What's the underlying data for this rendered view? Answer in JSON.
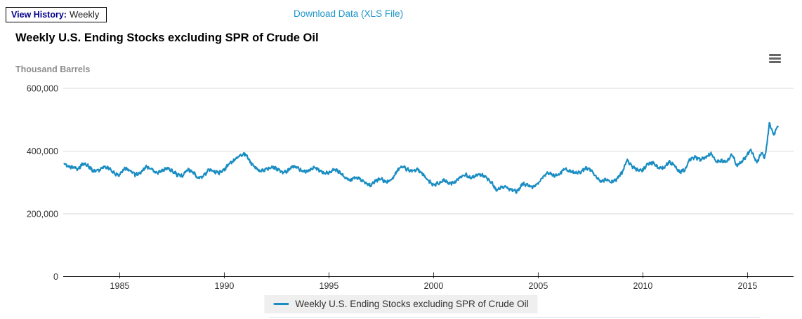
{
  "page": {
    "view_history_label": "View History:",
    "view_history_value": "Weekly",
    "download_link": "Download Data (XLS File)"
  },
  "chart": {
    "title": "Weekly U.S. Ending Stocks excluding SPR of Crude Oil",
    "y_axis_title": "Thousand Barrels",
    "legend_label": "Weekly U.S. Ending Stocks excluding SPR of Crude Oil",
    "colors": {
      "line": "#1a8dc2",
      "grid": "#d9d9d9",
      "axis_line": "#111111",
      "tick_label": "#333333",
      "link": "#2095ca",
      "view_history_label": "#00008b",
      "y_axis_title": "#8c8c8c",
      "legend_bg": "#efefef",
      "legend_text": "#333333"
    }
  },
  "chart_data": {
    "type": "line",
    "title": "Weekly U.S. Ending Stocks excluding SPR of Crude Oil",
    "xlabel": "",
    "ylabel": "Thousand Barrels",
    "xlim": [
      1982.3,
      2017.2
    ],
    "ylim": [
      0,
      600000
    ],
    "x_ticks": [
      1985,
      1990,
      1995,
      2000,
      2005,
      2010,
      2015
    ],
    "y_ticks": [
      0,
      200000,
      400000,
      600000
    ],
    "grid": "horizontal",
    "legend_position": "bottom",
    "series": [
      {
        "name": "Weekly U.S. Ending Stocks excluding SPR of Crude Oil",
        "points": [
          [
            1982.35,
            358000
          ],
          [
            1982.5,
            352000
          ],
          [
            1982.75,
            347000
          ],
          [
            1983.0,
            343000
          ],
          [
            1983.25,
            361000
          ],
          [
            1983.5,
            352000
          ],
          [
            1983.75,
            336000
          ],
          [
            1984.0,
            339000
          ],
          [
            1984.25,
            352000
          ],
          [
            1984.5,
            344000
          ],
          [
            1984.75,
            329000
          ],
          [
            1985.0,
            323000
          ],
          [
            1985.25,
            346000
          ],
          [
            1985.5,
            339000
          ],
          [
            1985.75,
            324000
          ],
          [
            1986.0,
            331000
          ],
          [
            1986.25,
            351000
          ],
          [
            1986.5,
            344000
          ],
          [
            1986.75,
            330000
          ],
          [
            1987.0,
            336000
          ],
          [
            1987.25,
            346000
          ],
          [
            1987.5,
            339000
          ],
          [
            1987.75,
            324000
          ],
          [
            1988.0,
            321000
          ],
          [
            1988.25,
            341000
          ],
          [
            1988.5,
            334000
          ],
          [
            1988.75,
            314000
          ],
          [
            1989.0,
            319000
          ],
          [
            1989.25,
            341000
          ],
          [
            1989.5,
            334000
          ],
          [
            1989.75,
            331000
          ],
          [
            1990.0,
            341000
          ],
          [
            1990.25,
            361000
          ],
          [
            1990.5,
            371000
          ],
          [
            1990.75,
            386000
          ],
          [
            1991.0,
            391000
          ],
          [
            1991.25,
            364000
          ],
          [
            1991.5,
            344000
          ],
          [
            1991.75,
            336000
          ],
          [
            1992.0,
            341000
          ],
          [
            1992.25,
            351000
          ],
          [
            1992.5,
            344000
          ],
          [
            1992.75,
            331000
          ],
          [
            1993.0,
            336000
          ],
          [
            1993.25,
            351000
          ],
          [
            1993.5,
            347000
          ],
          [
            1993.75,
            336000
          ],
          [
            1994.0,
            336000
          ],
          [
            1994.25,
            348000
          ],
          [
            1994.5,
            341000
          ],
          [
            1994.75,
            331000
          ],
          [
            1995.0,
            331000
          ],
          [
            1995.25,
            342000
          ],
          [
            1995.5,
            334000
          ],
          [
            1995.75,
            316000
          ],
          [
            1996.0,
            306000
          ],
          [
            1996.25,
            318000
          ],
          [
            1996.5,
            311000
          ],
          [
            1996.75,
            296000
          ],
          [
            1997.0,
            291000
          ],
          [
            1997.25,
            306000
          ],
          [
            1997.5,
            311000
          ],
          [
            1997.75,
            301000
          ],
          [
            1998.0,
            311000
          ],
          [
            1998.25,
            336000
          ],
          [
            1998.5,
            351000
          ],
          [
            1998.75,
            341000
          ],
          [
            1999.0,
            336000
          ],
          [
            1999.25,
            341000
          ],
          [
            1999.5,
            326000
          ],
          [
            1999.75,
            306000
          ],
          [
            2000.0,
            291000
          ],
          [
            2000.25,
            299000
          ],
          [
            2000.5,
            306000
          ],
          [
            2000.75,
            296000
          ],
          [
            2001.0,
            301000
          ],
          [
            2001.25,
            316000
          ],
          [
            2001.5,
            326000
          ],
          [
            2001.75,
            316000
          ],
          [
            2002.0,
            321000
          ],
          [
            2002.25,
            326000
          ],
          [
            2002.5,
            316000
          ],
          [
            2002.75,
            301000
          ],
          [
            2003.0,
            276000
          ],
          [
            2003.25,
            286000
          ],
          [
            2003.5,
            283000
          ],
          [
            2003.75,
            276000
          ],
          [
            2004.0,
            271000
          ],
          [
            2004.25,
            296000
          ],
          [
            2004.5,
            291000
          ],
          [
            2004.75,
            286000
          ],
          [
            2005.0,
            296000
          ],
          [
            2005.25,
            321000
          ],
          [
            2005.5,
            331000
          ],
          [
            2005.75,
            321000
          ],
          [
            2006.0,
            326000
          ],
          [
            2006.25,
            343000
          ],
          [
            2006.5,
            336000
          ],
          [
            2006.75,
            331000
          ],
          [
            2007.0,
            331000
          ],
          [
            2007.25,
            346000
          ],
          [
            2007.5,
            341000
          ],
          [
            2007.75,
            319000
          ],
          [
            2008.0,
            301000
          ],
          [
            2008.25,
            311000
          ],
          [
            2008.5,
            301000
          ],
          [
            2008.75,
            311000
          ],
          [
            2009.0,
            331000
          ],
          [
            2009.25,
            371000
          ],
          [
            2009.5,
            351000
          ],
          [
            2009.75,
            339000
          ],
          [
            2010.0,
            341000
          ],
          [
            2010.25,
            361000
          ],
          [
            2010.5,
            363000
          ],
          [
            2010.75,
            346000
          ],
          [
            2011.0,
            346000
          ],
          [
            2011.25,
            366000
          ],
          [
            2011.5,
            356000
          ],
          [
            2011.75,
            333000
          ],
          [
            2012.0,
            341000
          ],
          [
            2012.25,
            373000
          ],
          [
            2012.5,
            381000
          ],
          [
            2012.75,
            373000
          ],
          [
            2013.0,
            381000
          ],
          [
            2013.25,
            393000
          ],
          [
            2013.5,
            366000
          ],
          [
            2013.75,
            369000
          ],
          [
            2014.0,
            366000
          ],
          [
            2014.25,
            391000
          ],
          [
            2014.5,
            353000
          ],
          [
            2014.75,
            369000
          ],
          [
            2014.9,
            381000
          ],
          [
            2015.05,
            396000
          ],
          [
            2015.15,
            406000
          ],
          [
            2015.3,
            383000
          ],
          [
            2015.45,
            363000
          ],
          [
            2015.6,
            386000
          ],
          [
            2015.7,
            398000
          ],
          [
            2015.8,
            378000
          ],
          [
            2015.9,
            408000
          ],
          [
            2016.0,
            468000
          ],
          [
            2016.05,
            490000
          ],
          [
            2016.15,
            469000
          ],
          [
            2016.25,
            452000
          ],
          [
            2016.35,
            469000
          ],
          [
            2016.45,
            478000
          ]
        ]
      }
    ]
  }
}
